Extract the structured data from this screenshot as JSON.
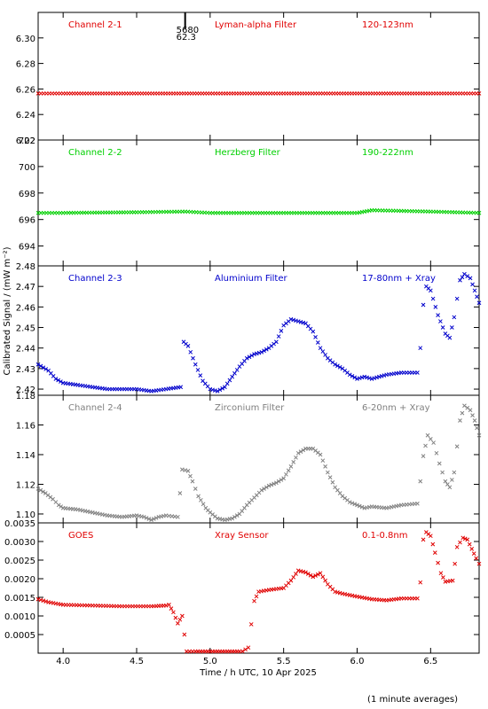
{
  "chart_data": [
    {
      "type": "scatter",
      "channel_label": "Channel 2-1",
      "filter_label": "Lyman-alpha Filter",
      "band_label": "120-123nm",
      "color": "#e00000",
      "ylim": [
        6.22,
        6.32
      ],
      "yticks": [
        "6.22",
        "6.24",
        "6.26",
        "6.28",
        "6.30"
      ],
      "yticks_values": [
        6.22,
        6.24,
        6.26,
        6.28,
        6.3
      ],
      "points": [
        [
          3.83,
          6.2565
        ],
        [
          4.0,
          6.2565
        ],
        [
          4.5,
          6.2565
        ],
        [
          5.0,
          6.2565
        ],
        [
          5.5,
          6.2565
        ],
        [
          6.0,
          6.2565
        ],
        [
          6.5,
          6.2565
        ],
        [
          6.83,
          6.2565
        ]
      ],
      "marker_annotation": {
        "x": 4.83,
        "lines": [
          "5680",
          "62.3"
        ]
      }
    },
    {
      "type": "scatter",
      "channel_label": "Channel 2-2",
      "filter_label": "Herzberg Filter",
      "band_label": "190-222nm",
      "color": "#00d000",
      "ylim": [
        692.5,
        702
      ],
      "yticks": [
        "694",
        "696",
        "698",
        "700",
        "702"
      ],
      "yticks_values": [
        694,
        696,
        698,
        700,
        702
      ],
      "points": [
        [
          3.83,
          696.5
        ],
        [
          4.0,
          696.5
        ],
        [
          4.5,
          696.55
        ],
        [
          4.83,
          696.6
        ],
        [
          5.0,
          696.5
        ],
        [
          5.5,
          696.5
        ],
        [
          6.0,
          696.5
        ],
        [
          6.1,
          696.7
        ],
        [
          6.5,
          696.6
        ],
        [
          6.83,
          696.5
        ]
      ]
    },
    {
      "type": "scatter",
      "channel_label": "Channel 2-3",
      "filter_label": "Aluminium Filter",
      "band_label": "17-80nm + Xray",
      "color": "#0000cc",
      "ylim": [
        2.417,
        2.48
      ],
      "yticks": [
        "2.42",
        "2.43",
        "2.44",
        "2.45",
        "2.46",
        "2.47",
        "2.48"
      ],
      "yticks_values": [
        2.42,
        2.43,
        2.44,
        2.45,
        2.46,
        2.47,
        2.48
      ],
      "points": [
        [
          3.83,
          2.432
        ],
        [
          3.9,
          2.429
        ],
        [
          3.95,
          2.425
        ],
        [
          4.0,
          2.423
        ],
        [
          4.1,
          2.422
        ],
        [
          4.2,
          2.421
        ],
        [
          4.3,
          2.42
        ],
        [
          4.4,
          2.42
        ],
        [
          4.5,
          2.42
        ],
        [
          4.6,
          2.419
        ],
        [
          4.7,
          2.42
        ],
        [
          4.8,
          2.421
        ],
        [
          4.82,
          2.443
        ],
        [
          4.85,
          2.441
        ],
        [
          4.9,
          2.432
        ],
        [
          4.95,
          2.424
        ],
        [
          5.0,
          2.42
        ],
        [
          5.05,
          2.419
        ],
        [
          5.1,
          2.421
        ],
        [
          5.15,
          2.426
        ],
        [
          5.2,
          2.431
        ],
        [
          5.25,
          2.435
        ],
        [
          5.3,
          2.437
        ],
        [
          5.35,
          2.438
        ],
        [
          5.4,
          2.44
        ],
        [
          5.45,
          2.443
        ],
        [
          5.5,
          2.451
        ],
        [
          5.55,
          2.454
        ],
        [
          5.6,
          2.453
        ],
        [
          5.65,
          2.452
        ],
        [
          5.7,
          2.448
        ],
        [
          5.75,
          2.44
        ],
        [
          5.8,
          2.435
        ],
        [
          5.85,
          2.432
        ],
        [
          5.9,
          2.43
        ],
        [
          5.95,
          2.427
        ],
        [
          6.0,
          2.425
        ],
        [
          6.05,
          2.426
        ],
        [
          6.1,
          2.425
        ],
        [
          6.15,
          2.426
        ],
        [
          6.2,
          2.427
        ],
        [
          6.3,
          2.428
        ],
        [
          6.41,
          2.428
        ],
        [
          6.43,
          2.44
        ],
        [
          6.45,
          2.461
        ],
        [
          6.47,
          2.47
        ],
        [
          6.5,
          2.468
        ],
        [
          6.55,
          2.456
        ],
        [
          6.6,
          2.447
        ],
        [
          6.63,
          2.445
        ],
        [
          6.66,
          2.455
        ],
        [
          6.7,
          2.473
        ],
        [
          6.73,
          2.476
        ],
        [
          6.77,
          2.474
        ],
        [
          6.8,
          2.468
        ],
        [
          6.83,
          2.462
        ]
      ]
    },
    {
      "type": "scatter",
      "channel_label": "Channel 2-4",
      "filter_label": "Zirconium Filter",
      "band_label": "6-20nm + Xray",
      "color": "#808080",
      "ylim": [
        1.094,
        1.18
      ],
      "yticks": [
        "1.10",
        "1.12",
        "1.14",
        "1.16",
        "1.18"
      ],
      "yticks_values": [
        1.1,
        1.12,
        1.14,
        1.16,
        1.18
      ],
      "points": [
        [
          3.83,
          1.117
        ],
        [
          3.88,
          1.114
        ],
        [
          3.93,
          1.11
        ],
        [
          3.97,
          1.106
        ],
        [
          4.0,
          1.104
        ],
        [
          4.1,
          1.103
        ],
        [
          4.2,
          1.101
        ],
        [
          4.3,
          1.099
        ],
        [
          4.4,
          1.098
        ],
        [
          4.5,
          1.099
        ],
        [
          4.55,
          1.098
        ],
        [
          4.6,
          1.096
        ],
        [
          4.65,
          1.098
        ],
        [
          4.7,
          1.099
        ],
        [
          4.78,
          1.098
        ],
        [
          4.81,
          1.13
        ],
        [
          4.85,
          1.129
        ],
        [
          4.88,
          1.122
        ],
        [
          4.92,
          1.112
        ],
        [
          4.97,
          1.104
        ],
        [
          5.0,
          1.101
        ],
        [
          5.05,
          1.097
        ],
        [
          5.1,
          1.096
        ],
        [
          5.15,
          1.097
        ],
        [
          5.2,
          1.1
        ],
        [
          5.25,
          1.106
        ],
        [
          5.3,
          1.111
        ],
        [
          5.35,
          1.116
        ],
        [
          5.4,
          1.119
        ],
        [
          5.45,
          1.121
        ],
        [
          5.5,
          1.124
        ],
        [
          5.55,
          1.132
        ],
        [
          5.6,
          1.141
        ],
        [
          5.65,
          1.144
        ],
        [
          5.7,
          1.144
        ],
        [
          5.75,
          1.14
        ],
        [
          5.8,
          1.128
        ],
        [
          5.85,
          1.118
        ],
        [
          5.9,
          1.112
        ],
        [
          5.95,
          1.108
        ],
        [
          6.0,
          1.106
        ],
        [
          6.05,
          1.104
        ],
        [
          6.1,
          1.105
        ],
        [
          6.2,
          1.104
        ],
        [
          6.3,
          1.106
        ],
        [
          6.41,
          1.107
        ],
        [
          6.43,
          1.122
        ],
        [
          6.45,
          1.139
        ],
        [
          6.48,
          1.153
        ],
        [
          6.52,
          1.148
        ],
        [
          6.56,
          1.134
        ],
        [
          6.6,
          1.122
        ],
        [
          6.63,
          1.118
        ],
        [
          6.66,
          1.128
        ],
        [
          6.7,
          1.163
        ],
        [
          6.73,
          1.173
        ],
        [
          6.77,
          1.17
        ],
        [
          6.8,
          1.163
        ],
        [
          6.83,
          1.153
        ]
      ]
    },
    {
      "type": "scatter",
      "channel_label": "GOES",
      "filter_label": "Xray Sensor",
      "band_label": "0.1-0.8nm",
      "color": "#e00000",
      "ylim": [
        0.0,
        0.0035
      ],
      "yticks": [
        "0.0005",
        "0.0010",
        "0.0015",
        "0.0020",
        "0.0025",
        "0.0030",
        "0.0035"
      ],
      "yticks_values": [
        0.0005,
        0.001,
        0.0015,
        0.002,
        0.0025,
        0.003,
        0.0035
      ],
      "points": [
        [
          3.83,
          0.00145
        ],
        [
          3.9,
          0.00137
        ],
        [
          4.0,
          0.0013
        ],
        [
          4.2,
          0.00128
        ],
        [
          4.4,
          0.00126
        ],
        [
          4.6,
          0.00126
        ],
        [
          4.7,
          0.00128
        ],
        [
          4.72,
          0.0013
        ],
        [
          4.75,
          0.0011
        ],
        [
          4.78,
          0.0008
        ],
        [
          4.81,
          0.001
        ],
        [
          4.84,
          0.0
        ],
        [
          4.9,
          0.0
        ],
        [
          5.0,
          0.0
        ],
        [
          5.1,
          0.0
        ],
        [
          5.2,
          0.0
        ],
        [
          5.26,
          0.00015
        ],
        [
          5.3,
          0.0014
        ],
        [
          5.33,
          0.00165
        ],
        [
          5.4,
          0.0017
        ],
        [
          5.5,
          0.00175
        ],
        [
          5.55,
          0.00195
        ],
        [
          5.6,
          0.00222
        ],
        [
          5.65,
          0.00217
        ],
        [
          5.7,
          0.00205
        ],
        [
          5.75,
          0.00215
        ],
        [
          5.8,
          0.00185
        ],
        [
          5.85,
          0.00165
        ],
        [
          5.9,
          0.0016
        ],
        [
          6.0,
          0.00152
        ],
        [
          6.1,
          0.00145
        ],
        [
          6.2,
          0.00142
        ],
        [
          6.3,
          0.00147
        ],
        [
          6.41,
          0.00147
        ],
        [
          6.43,
          0.0019
        ],
        [
          6.45,
          0.00305
        ],
        [
          6.47,
          0.00325
        ],
        [
          6.5,
          0.00315
        ],
        [
          6.53,
          0.0027
        ],
        [
          6.57,
          0.00215
        ],
        [
          6.6,
          0.00192
        ],
        [
          6.65,
          0.00195
        ],
        [
          6.68,
          0.00285
        ],
        [
          6.72,
          0.0031
        ],
        [
          6.75,
          0.00305
        ],
        [
          6.78,
          0.0028
        ],
        [
          6.81,
          0.00255
        ],
        [
          6.83,
          0.0024
        ]
      ]
    }
  ],
  "x_axis": {
    "xlim": [
      3.83,
      6.83
    ],
    "tick_values": [
      4.0,
      4.5,
      5.0,
      5.5,
      6.0,
      6.5
    ],
    "tick_labels": [
      "4.0",
      "4.5",
      "5.0",
      "5.5",
      "6.0",
      "6.5"
    ],
    "label": "Time / h UTC, 10 Apr 2025"
  },
  "y_axis_label": "Calibrated Signal / (mW m⁻²)",
  "footnote": "(1 minute averages)"
}
